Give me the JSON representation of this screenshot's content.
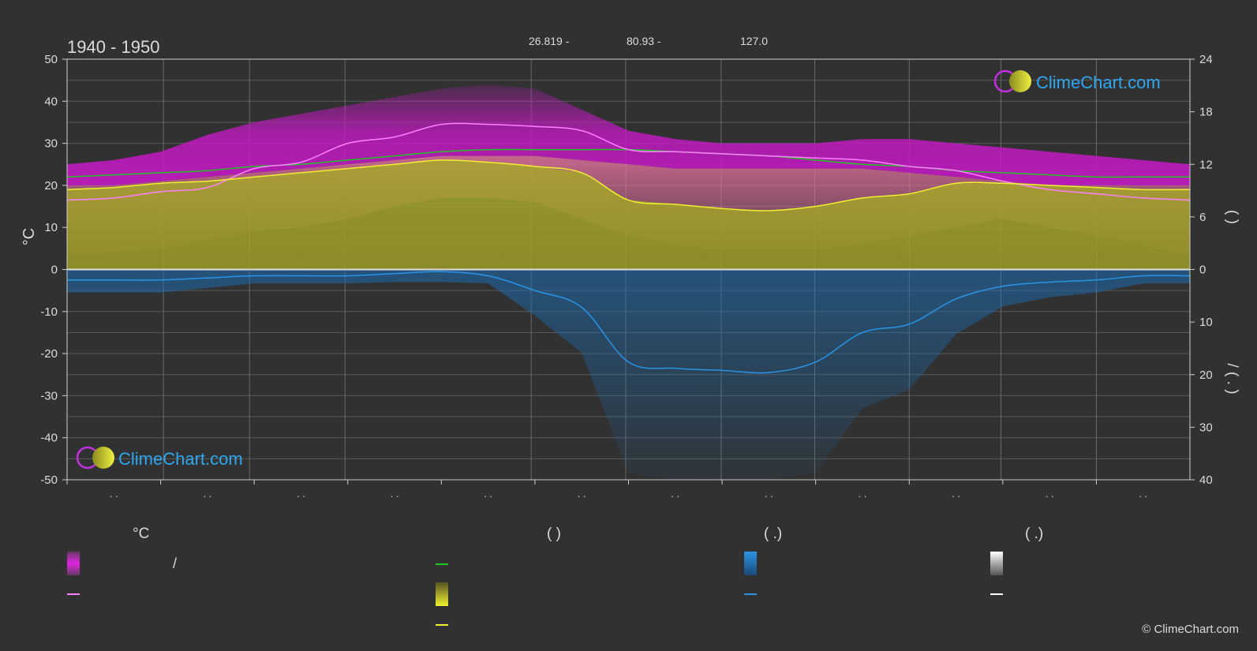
{
  "page": {
    "period": "1940 - 1950",
    "coordinates": [
      "26.819 -",
      "80.93 -",
      "127.0"
    ],
    "copyright": "© ClimeChart.com",
    "logo_text": "ClimeChart.com"
  },
  "colors": {
    "background": "#313131",
    "grid": "#5a5a5a",
    "max_temp_band": "#d01ad0",
    "mean_temp_line": "#ff80ff",
    "min_temp_band": "#e0709c",
    "daylight_line": "#22c422",
    "sunshine_band": "#a8a82c",
    "sunshine_line": "#f0f030",
    "precip_band": "#1a6fb8",
    "precip_line": "#2a94e6",
    "logo": "#2ea7f0"
  },
  "chart_data": {
    "type": "area",
    "xlabel": "",
    "ylabel": "°C",
    "ylim": [
      -50,
      50
    ],
    "y_ticks": [
      50,
      40,
      30,
      20,
      10,
      0,
      -10,
      -20,
      -30,
      -40,
      -50
    ],
    "right_ticks_upper": [
      24,
      18,
      12,
      6,
      0
    ],
    "right_ticks_lower": [
      10,
      20,
      30,
      40
    ],
    "right_label_upper": "(  )",
    "right_label_lower": "/  ( . )",
    "month_ticks": [
      ". .",
      ". .",
      ". .",
      ". .",
      ". .",
      ". .",
      ". .",
      ". .",
      ". .",
      ". .",
      ". .",
      ". ."
    ],
    "x": [
      0,
      0.5,
      1,
      1.5,
      2,
      2.5,
      3,
      3.5,
      4,
      4.5,
      5,
      5.5,
      6,
      6.5,
      7,
      7.5,
      8,
      8.5,
      9,
      9.5,
      10,
      10.5,
      11,
      11.5,
      12
    ],
    "series": [
      {
        "key": "max_band_top",
        "values": [
          25,
          26,
          28,
          32,
          35,
          37,
          39,
          41,
          43,
          44,
          43,
          38,
          33,
          31,
          30,
          30,
          30,
          31,
          31,
          30,
          29,
          28,
          27,
          26,
          25
        ]
      },
      {
        "key": "max_band_bottom",
        "values": [
          20,
          20,
          21,
          22,
          23,
          24,
          25,
          26,
          27,
          27,
          27,
          26,
          25,
          24,
          24,
          24,
          24,
          24,
          23,
          22,
          21,
          20,
          20,
          20,
          20
        ]
      },
      {
        "key": "mean_temp",
        "values": [
          16.5,
          17,
          18.5,
          19.5,
          24,
          25.5,
          30,
          31.5,
          34.5,
          34.5,
          34,
          33,
          28.5,
          28,
          27.5,
          27,
          26.5,
          26,
          24.5,
          23.5,
          21,
          19,
          18,
          17,
          16.5
        ]
      },
      {
        "key": "min_band_bottom",
        "values": [
          3,
          4,
          5,
          7,
          9,
          10,
          12,
          15,
          17,
          17,
          16,
          12,
          8,
          6,
          5,
          5,
          5,
          6,
          8,
          10,
          12,
          10,
          8,
          6,
          3
        ]
      },
      {
        "key": "daylight",
        "values": [
          22,
          22.5,
          23,
          23.5,
          24.5,
          25,
          26,
          27,
          28,
          28.5,
          28.5,
          28.5,
          28.5,
          28,
          27.5,
          27,
          26,
          25,
          24.5,
          23.5,
          23,
          22.5,
          22,
          22,
          22
        ]
      },
      {
        "key": "sunshine",
        "values": [
          19,
          19.5,
          20.5,
          21,
          22,
          23,
          24,
          25,
          26,
          25.5,
          24.5,
          23,
          16.5,
          15.5,
          14.5,
          14,
          15,
          17,
          18,
          20.5,
          20.5,
          20,
          19.5,
          19,
          19
        ]
      },
      {
        "key": "precip",
        "values": [
          -2.5,
          -2.5,
          -2.5,
          -2,
          -1.5,
          -1.5,
          -1.5,
          -1,
          -0.5,
          -1.5,
          -5,
          -9,
          -22,
          -23.5,
          -24,
          -24.5,
          -22,
          -15,
          -13,
          -7,
          -4,
          -3,
          -2.5,
          -1.5,
          -1.5
        ]
      }
    ]
  },
  "legend": {
    "col1_header": "°C",
    "col1_slash": "/",
    "col2_header": "(          )",
    "col3_header": "(    .)",
    "col4_header": "(    .)"
  }
}
